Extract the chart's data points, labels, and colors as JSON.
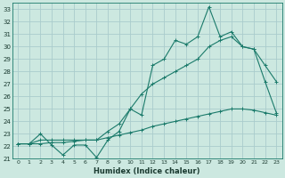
{
  "xlabel": "Humidex (Indice chaleur)",
  "bg_color": "#cce8e0",
  "grid_color": "#aacccc",
  "line_color": "#1a7a6a",
  "ylim": [
    21,
    33.5
  ],
  "xlim": [
    -0.5,
    23.5
  ],
  "yticks": [
    21,
    22,
    23,
    24,
    25,
    26,
    27,
    28,
    29,
    30,
    31,
    32,
    33
  ],
  "xticks": [
    0,
    1,
    2,
    3,
    4,
    5,
    6,
    7,
    8,
    9,
    10,
    11,
    12,
    13,
    14,
    15,
    16,
    17,
    18,
    19,
    20,
    21,
    22,
    23
  ],
  "line1_x": [
    0,
    1,
    2,
    3,
    4,
    5,
    6,
    7,
    8,
    9,
    10,
    11,
    12,
    13,
    14,
    15,
    16,
    17,
    18,
    19,
    20,
    21,
    22,
    23
  ],
  "line1_y": [
    22.2,
    22.2,
    23.0,
    22.1,
    21.3,
    22.1,
    22.1,
    21.1,
    22.5,
    23.2,
    25.0,
    24.5,
    28.5,
    29.0,
    30.5,
    30.2,
    30.8,
    33.2,
    30.8,
    31.2,
    30.0,
    29.8,
    27.2,
    24.7
  ],
  "line2_x": [
    0,
    1,
    2,
    3,
    4,
    5,
    6,
    7,
    8,
    9,
    10,
    11,
    12,
    13,
    14,
    15,
    16,
    17,
    18,
    19,
    20,
    21,
    22,
    23
  ],
  "line2_y": [
    22.2,
    22.2,
    22.5,
    22.5,
    22.5,
    22.5,
    22.5,
    22.5,
    23.2,
    23.8,
    25.0,
    26.2,
    27.0,
    27.5,
    28.0,
    28.5,
    29.0,
    30.0,
    30.5,
    30.8,
    30.0,
    29.8,
    28.5,
    27.2
  ],
  "line3_x": [
    0,
    1,
    2,
    3,
    4,
    5,
    6,
    7,
    8,
    9,
    10,
    11,
    12,
    13,
    14,
    15,
    16,
    17,
    18,
    19,
    20,
    21,
    22,
    23
  ],
  "line3_y": [
    22.2,
    22.2,
    22.2,
    22.3,
    22.3,
    22.4,
    22.5,
    22.5,
    22.7,
    22.9,
    23.1,
    23.3,
    23.6,
    23.8,
    24.0,
    24.2,
    24.4,
    24.6,
    24.8,
    25.0,
    25.0,
    24.9,
    24.7,
    24.5
  ]
}
